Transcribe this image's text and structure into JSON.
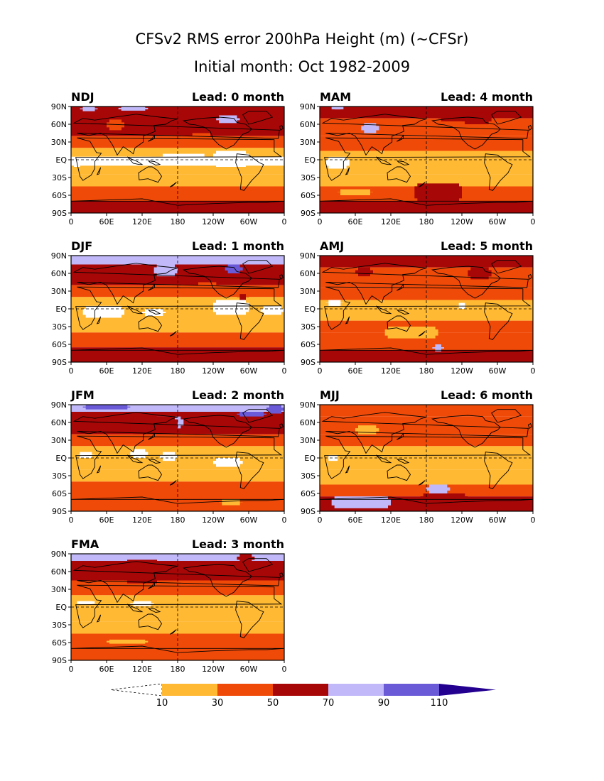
{
  "figure": {
    "title": "CFSv2 RMS error 200hPa Height (m) (~CFSr)",
    "subtitle": "Initial month: Oct 1982-2009"
  },
  "axes": {
    "lat_ticks": [
      "90N",
      "60N",
      "30N",
      "EQ",
      "30S",
      "60S",
      "90S"
    ],
    "lon_ticks": [
      "0",
      "60E",
      "120E",
      "180",
      "120W",
      "60W",
      "0"
    ]
  },
  "panels": [
    {
      "season": "NDJ",
      "lead": "Lead: 0 month"
    },
    {
      "season": "MAM",
      "lead": "Lead: 4 month"
    },
    {
      "season": "DJF",
      "lead": "Lead: 1 month"
    },
    {
      "season": "AMJ",
      "lead": "Lead: 5 month"
    },
    {
      "season": "JFM",
      "lead": "Lead: 2 month"
    },
    {
      "season": "MJJ",
      "lead": "Lead: 6 month"
    },
    {
      "season": "FMA",
      "lead": "Lead: 3 month"
    }
  ],
  "colorbar": {
    "labels": [
      "10",
      "30",
      "50",
      "70",
      "90",
      "110"
    ],
    "colors": [
      "#ffb933",
      "#f04a08",
      "#a80707",
      "#c0b8f8",
      "#6a5ad8",
      "#23008f"
    ],
    "below_color": "#ffffff"
  },
  "colors": {
    "cat0": "#ffffff",
    "cat1": "#ffb933",
    "cat2": "#f04a08",
    "cat3": "#a80707",
    "cat4": "#c0b8f8",
    "cat5": "#6a5ad8",
    "coast": "#000000"
  }
}
